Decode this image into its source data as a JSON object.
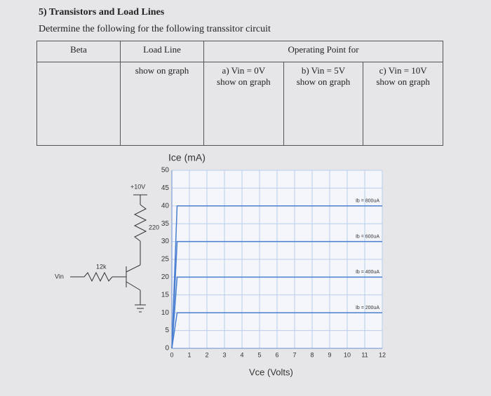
{
  "header": {
    "title": "5) Transistors and Load Lines",
    "instruction": "Determine the following for the following transsitor circuit"
  },
  "table": {
    "beta": "Beta",
    "load_line": "Load Line",
    "operating_point": "Operating Point for",
    "cells": [
      {
        "head": null,
        "text": "show on graph"
      },
      {
        "head": "a) Vin = 0V",
        "text": "show on graph"
      },
      {
        "head": "b) Vin = 5V",
        "text": "show on graph"
      },
      {
        "head": "c) Vin = 10V",
        "text": "show on graph"
      }
    ]
  },
  "circuit": {
    "supply": "+10V",
    "collector_resistor": "220",
    "base_resistor": "12k",
    "input": "Vin"
  },
  "chart_data": {
    "type": "line",
    "y_label": "Ice (mA)",
    "x_label": "Vce (Volts)",
    "x": [
      0,
      0.3,
      12
    ],
    "series": [
      {
        "name": "Ib = 800uA",
        "color": "#4a7fd0",
        "values": [
          0,
          40,
          40
        ]
      },
      {
        "name": "Ib = 600uA",
        "color": "#4a7fd0",
        "values": [
          0,
          30,
          30
        ]
      },
      {
        "name": "Ib = 400uA",
        "color": "#4a7fd0",
        "values": [
          0,
          20,
          20
        ]
      },
      {
        "name": "Ib = 200uA",
        "color": "#4a7fd0",
        "values": [
          0,
          10,
          10
        ]
      }
    ],
    "xlim": [
      0,
      12
    ],
    "ylim": [
      0,
      50
    ],
    "xticks": [
      0,
      1,
      2,
      3,
      4,
      5,
      6,
      7,
      8,
      9,
      10,
      11,
      12
    ],
    "yticks": [
      0,
      5,
      10,
      15,
      20,
      25,
      30,
      35,
      40,
      45,
      50
    ],
    "grid": true
  }
}
